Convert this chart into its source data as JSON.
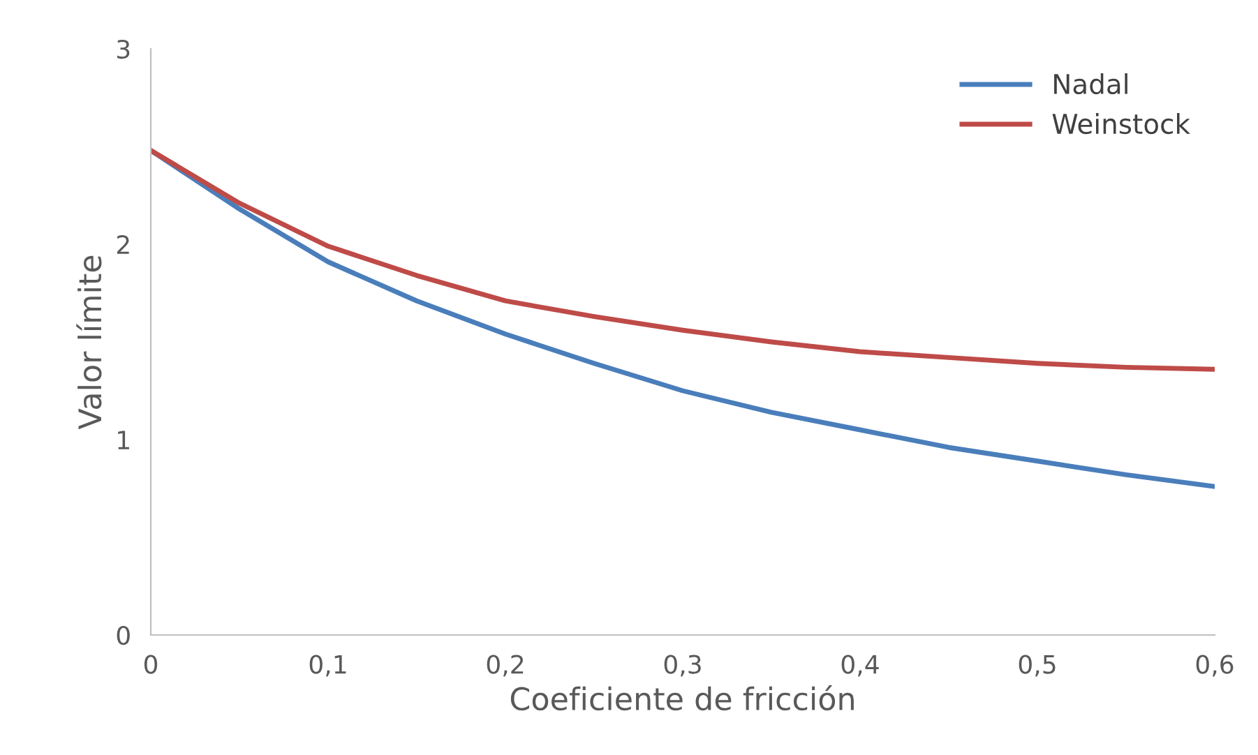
{
  "chart_data": {
    "type": "line",
    "xlabel": "Coeficiente de fricción",
    "ylabel": "Valor límite",
    "x": [
      0,
      0.05,
      0.1,
      0.15,
      0.2,
      0.25,
      0.3,
      0.35,
      0.4,
      0.45,
      0.5,
      0.55,
      0.6
    ],
    "series": [
      {
        "name": "Nadal",
        "color": "#4a7ebb",
        "values": [
          2.48,
          2.18,
          1.91,
          1.71,
          1.54,
          1.39,
          1.25,
          1.14,
          1.05,
          0.96,
          0.89,
          0.82,
          0.76
        ]
      },
      {
        "name": "Weinstock",
        "color": "#be4b48",
        "values": [
          2.48,
          2.21,
          1.99,
          1.84,
          1.71,
          1.63,
          1.56,
          1.5,
          1.45,
          1.42,
          1.39,
          1.37,
          1.36
        ]
      }
    ],
    "xlim": [
      0,
      0.6
    ],
    "ylim": [
      0,
      3
    ],
    "xticks": [
      0,
      {
        "value": 0.1,
        "label": "0,1"
      },
      {
        "value": 0.2,
        "label": "0,2"
      },
      {
        "value": 0.3,
        "label": "0,3"
      },
      {
        "value": 0.4,
        "label": "0,4"
      },
      {
        "value": 0.5,
        "label": "0,5"
      },
      {
        "value": 0.6,
        "label": "0,6"
      }
    ],
    "yticks": [
      0,
      1,
      2,
      3
    ],
    "grid": false,
    "legend": "top right",
    "line_style": "solid",
    "marker": "none"
  }
}
